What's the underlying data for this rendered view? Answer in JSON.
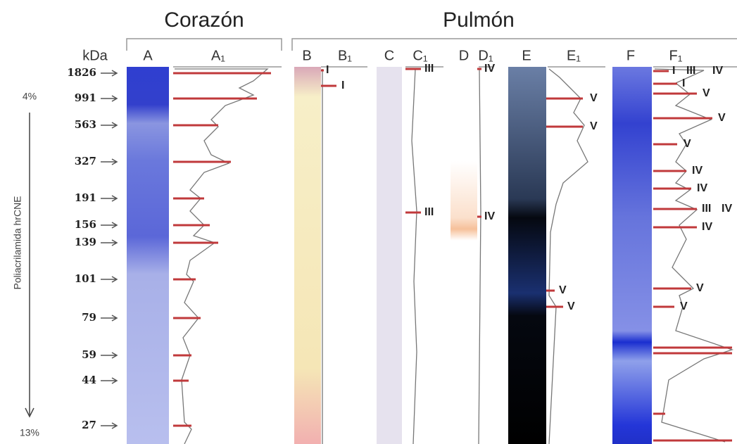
{
  "headers": {
    "left": "Corazón",
    "right": "Pulmón"
  },
  "lanes": [
    "kDa",
    "A",
    "A₁",
    "B",
    "B₁",
    "C",
    "C₁",
    "D",
    "D₁",
    "E",
    "E₁",
    "F",
    "F₁"
  ],
  "markers": [
    "1826",
    "991",
    "563",
    "327",
    "191",
    "156",
    "139",
    "101",
    "79",
    "59",
    "44",
    "27"
  ],
  "gradient": {
    "top": "4%",
    "bottom": "13%",
    "label": "Poliacrilamida hrCNE"
  },
  "band_labels": {
    "B1": [
      "I",
      "I"
    ],
    "C1": [
      "III",
      "III"
    ],
    "D1": [
      "IV",
      "IV"
    ],
    "E1": [
      "V",
      "V",
      "V",
      "V"
    ],
    "F1": [
      "I",
      "III",
      "IV",
      "I",
      "V",
      "V",
      "V",
      "IV",
      "IV",
      "III",
      "IV",
      "IV",
      "V",
      "V"
    ]
  }
}
